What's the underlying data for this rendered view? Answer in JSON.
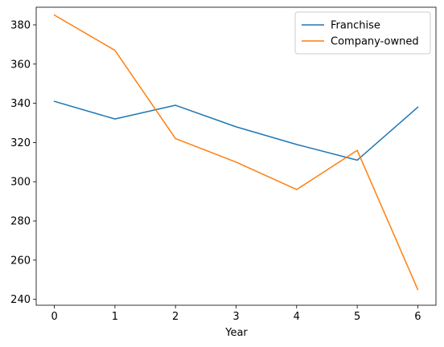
{
  "chart_data": {
    "type": "line",
    "x": [
      0,
      1,
      2,
      3,
      4,
      5,
      6
    ],
    "series": [
      {
        "name": "Franchise",
        "color": "#1f77b4",
        "values": [
          341,
          332,
          339,
          328,
          319,
          311,
          338
        ]
      },
      {
        "name": "Company-owned",
        "color": "#ff7f0e",
        "values": [
          385,
          367,
          322,
          310,
          296,
          316,
          245
        ]
      }
    ],
    "xlabel": "Year",
    "ylabel": "",
    "xticks": [
      "0",
      "1",
      "2",
      "3",
      "4",
      "5",
      "6"
    ],
    "yticks": [
      "240",
      "260",
      "280",
      "300",
      "320",
      "340",
      "360",
      "380"
    ],
    "xlim": [
      -0.3,
      6.3
    ],
    "ylim": [
      237,
      389
    ],
    "grid": false,
    "legend_position": "top-right"
  }
}
